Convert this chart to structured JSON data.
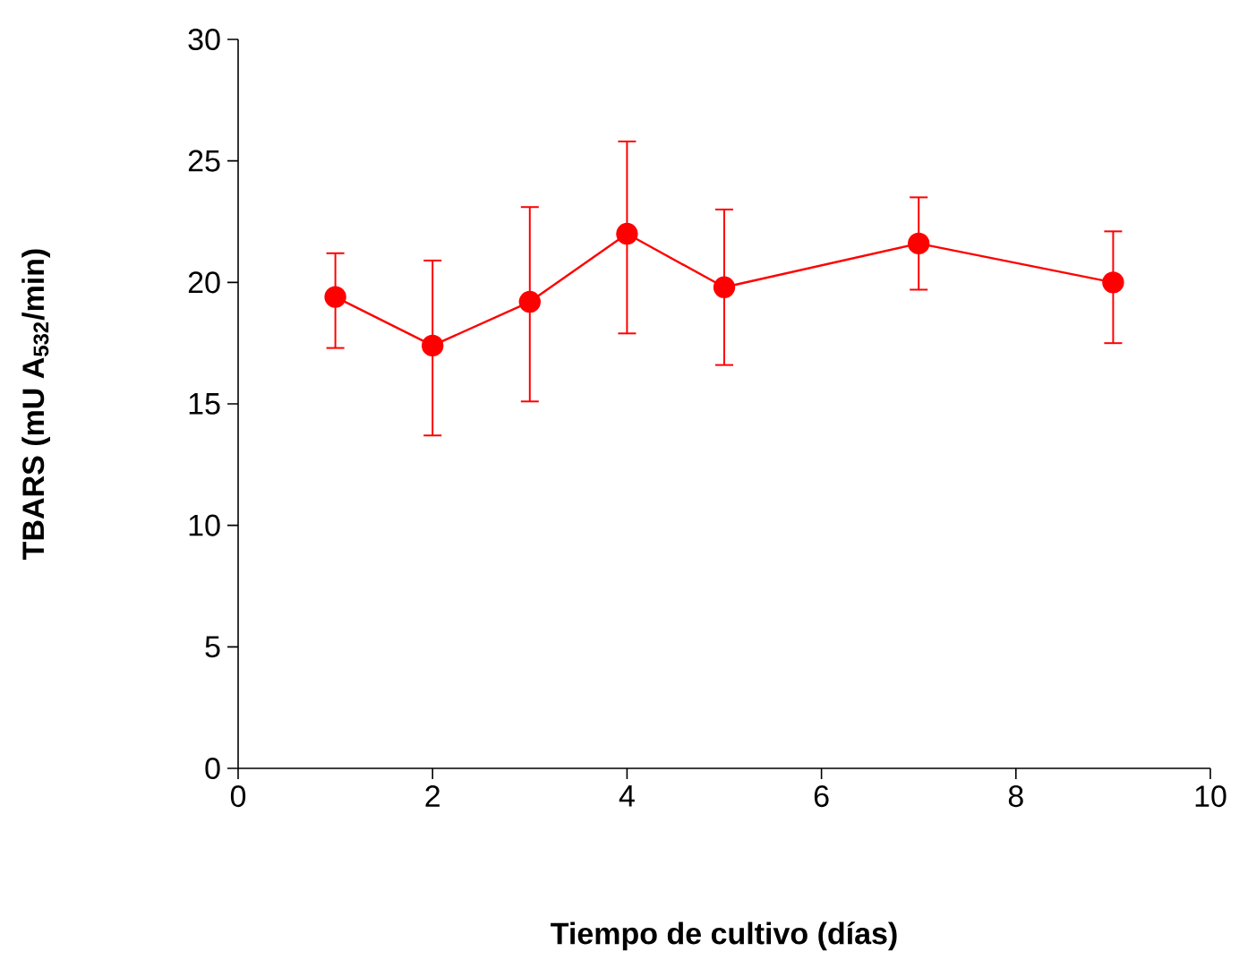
{
  "chart_data": {
    "type": "line",
    "xlabel": "Tiempo de cultivo (días)",
    "ylabel": "TBARS  (mU A$_{532}$/min)",
    "x": [
      1,
      2,
      3,
      4,
      5,
      7,
      9
    ],
    "series": [
      {
        "color": "#ff0000",
        "values": [
          19.4,
          17.4,
          19.2,
          22.0,
          19.8,
          21.6,
          20.0
        ],
        "errors": [
          [
            17.3,
            21.2
          ],
          [
            13.7,
            20.9
          ],
          [
            15.1,
            23.1
          ],
          [
            17.9,
            25.8
          ],
          [
            16.6,
            23.0
          ],
          [
            19.7,
            23.5
          ],
          [
            17.5,
            22.1
          ]
        ]
      }
    ],
    "xlim": [
      0,
      10
    ],
    "ylim": [
      0,
      30
    ],
    "xticks": [
      0,
      2,
      4,
      6,
      8,
      10
    ],
    "yticks": [
      0,
      5,
      10,
      15,
      20,
      25,
      30
    ],
    "marker": "circle",
    "line_style": "solid",
    "grid": false
  }
}
